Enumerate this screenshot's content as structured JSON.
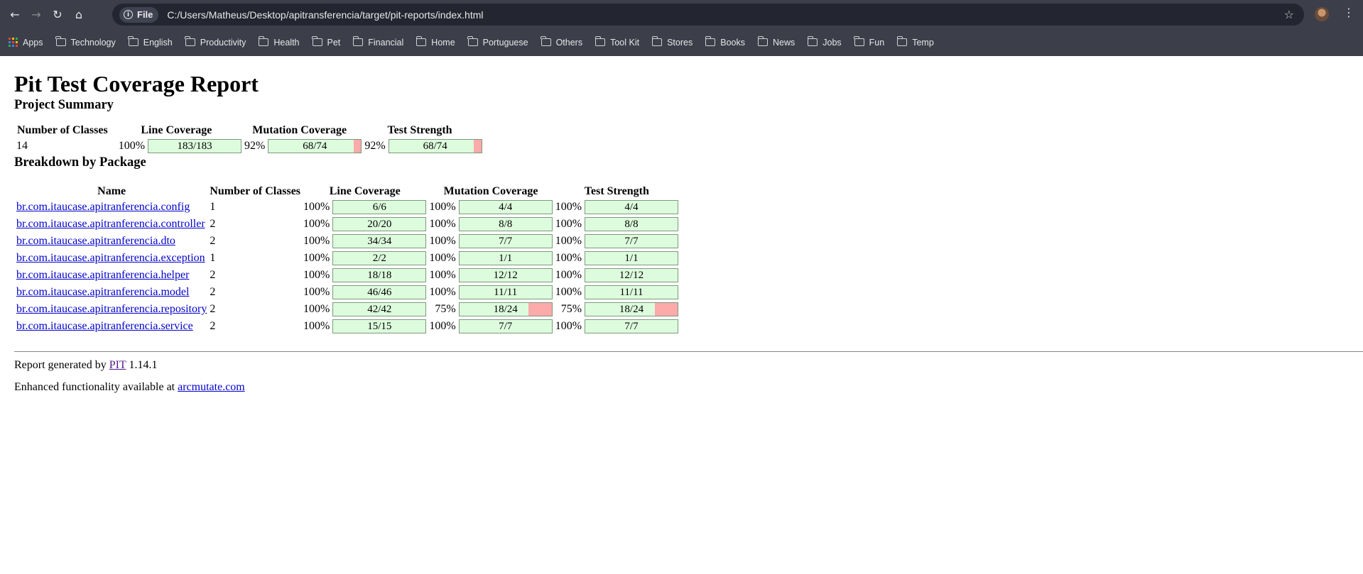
{
  "browser": {
    "url": "C:/Users/Matheus/Desktop/apitransferencia/target/pit-reports/index.html",
    "site_chip": "File",
    "bookmarks": [
      "Apps",
      "Technology",
      "English",
      "Productivity",
      "Health",
      "Pet",
      "Financial",
      "Home",
      "Portuguese",
      "Others",
      "Tool Kit",
      "Stores",
      "Books",
      "News",
      "Jobs",
      "Fun",
      "Temp"
    ]
  },
  "report": {
    "title": "Pit Test Coverage Report",
    "project_summary_heading": "Project Summary",
    "breakdown_heading": "Breakdown by Package",
    "summary_headers": [
      "Number of Classes",
      "Line Coverage",
      "Mutation Coverage",
      "Test Strength"
    ],
    "summary": {
      "classes": "14",
      "line": {
        "pct": "100%",
        "label": "183/183",
        "fraction": 1.0
      },
      "mutation": {
        "pct": "92%",
        "label": "68/74",
        "fraction": 0.92
      },
      "strength": {
        "pct": "92%",
        "label": "68/74",
        "fraction": 0.92
      }
    },
    "package_headers": [
      "Name",
      "Number of Classes",
      "Line Coverage",
      "Mutation Coverage",
      "Test Strength"
    ],
    "packages": [
      {
        "name": "br.com.itaucase.apitranferencia.config",
        "classes": "1",
        "line": {
          "pct": "100%",
          "label": "6/6",
          "fraction": 1.0
        },
        "mutation": {
          "pct": "100%",
          "label": "4/4",
          "fraction": 1.0
        },
        "strength": {
          "pct": "100%",
          "label": "4/4",
          "fraction": 1.0
        }
      },
      {
        "name": "br.com.itaucase.apitranferencia.controller",
        "classes": "2",
        "line": {
          "pct": "100%",
          "label": "20/20",
          "fraction": 1.0
        },
        "mutation": {
          "pct": "100%",
          "label": "8/8",
          "fraction": 1.0
        },
        "strength": {
          "pct": "100%",
          "label": "8/8",
          "fraction": 1.0
        }
      },
      {
        "name": "br.com.itaucase.apitranferencia.dto",
        "classes": "2",
        "line": {
          "pct": "100%",
          "label": "34/34",
          "fraction": 1.0
        },
        "mutation": {
          "pct": "100%",
          "label": "7/7",
          "fraction": 1.0
        },
        "strength": {
          "pct": "100%",
          "label": "7/7",
          "fraction": 1.0
        }
      },
      {
        "name": "br.com.itaucase.apitranferencia.exception",
        "classes": "1",
        "line": {
          "pct": "100%",
          "label": "2/2",
          "fraction": 1.0
        },
        "mutation": {
          "pct": "100%",
          "label": "1/1",
          "fraction": 1.0
        },
        "strength": {
          "pct": "100%",
          "label": "1/1",
          "fraction": 1.0
        }
      },
      {
        "name": "br.com.itaucase.apitranferencia.helper",
        "classes": "2",
        "line": {
          "pct": "100%",
          "label": "18/18",
          "fraction": 1.0
        },
        "mutation": {
          "pct": "100%",
          "label": "12/12",
          "fraction": 1.0
        },
        "strength": {
          "pct": "100%",
          "label": "12/12",
          "fraction": 1.0
        }
      },
      {
        "name": "br.com.itaucase.apitranferencia.model",
        "classes": "2",
        "line": {
          "pct": "100%",
          "label": "46/46",
          "fraction": 1.0
        },
        "mutation": {
          "pct": "100%",
          "label": "11/11",
          "fraction": 1.0
        },
        "strength": {
          "pct": "100%",
          "label": "11/11",
          "fraction": 1.0
        }
      },
      {
        "name": "br.com.itaucase.apitranferencia.repository",
        "classes": "2",
        "line": {
          "pct": "100%",
          "label": "42/42",
          "fraction": 1.0
        },
        "mutation": {
          "pct": "75%",
          "label": "18/24",
          "fraction": 0.75
        },
        "strength": {
          "pct": "75%",
          "label": "18/24",
          "fraction": 0.75
        }
      },
      {
        "name": "br.com.itaucase.apitranferencia.service",
        "classes": "2",
        "line": {
          "pct": "100%",
          "label": "15/15",
          "fraction": 1.0
        },
        "mutation": {
          "pct": "100%",
          "label": "7/7",
          "fraction": 1.0
        },
        "strength": {
          "pct": "100%",
          "label": "7/7",
          "fraction": 1.0
        }
      }
    ],
    "footer": {
      "generated_prefix": "Report generated by ",
      "pit_link": "PIT",
      "version": " 1.14.1",
      "enhanced_prefix": "Enhanced functionality available at ",
      "arcmutate_link": "arcmutate.com"
    }
  },
  "colors": {
    "covered": "#ddfcdd",
    "uncovered": "#fcaaaa",
    "chrome": "#3c3f4a"
  }
}
